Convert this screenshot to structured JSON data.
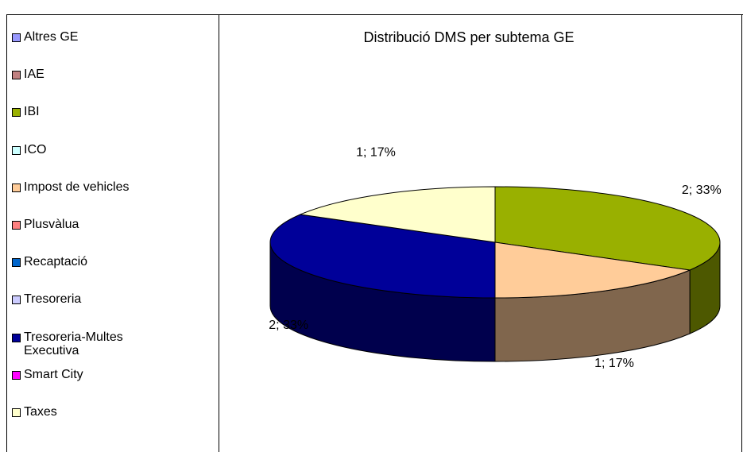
{
  "chart_data": {
    "type": "pie3d",
    "title": "Distribució DMS per subtema GE",
    "categories": [
      "Altres GE",
      "IAE",
      "IBI",
      "ICO",
      "Impost de vehicles",
      "Plusvàlua",
      "Recaptació",
      "Tresoreria",
      "Tresoreria-Multes Executiva",
      "Smart City",
      "Taxes"
    ],
    "values": [
      0,
      0,
      2,
      0,
      1,
      0,
      0,
      0,
      2,
      0,
      1
    ],
    "value_labels": [
      null,
      null,
      "2; 33%",
      null,
      "1; 17%",
      null,
      null,
      null,
      "2; 33%",
      null,
      "1; 17%"
    ],
    "colors": [
      "#9999ff",
      "#c08080",
      "#99b000",
      "#ccffff",
      "#ffcc99",
      "#ff8080",
      "#0066cc",
      "#ccccff",
      "#000099",
      "#ff00ff",
      "#ffffcc"
    ],
    "legend": "left"
  }
}
